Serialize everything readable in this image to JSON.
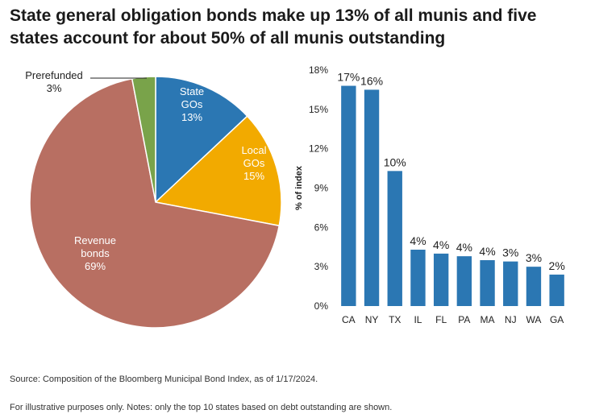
{
  "title": {
    "line1": "State general obligation bonds make up 13% of all munis and five",
    "line2": "states account for about 50% of all munis outstanding"
  },
  "chart_data": [
    {
      "type": "pie",
      "slices": [
        {
          "label_lines": [
            "State",
            "GOs",
            "13%"
          ],
          "value": 13,
          "color": "#2b77b3"
        },
        {
          "label_lines": [
            "Local",
            "GOs",
            "15%"
          ],
          "value": 15,
          "color": "#f2aa00"
        },
        {
          "label_lines": [
            "Revenue",
            "bonds",
            "69%"
          ],
          "value": 69,
          "color": "#b86f62"
        },
        {
          "label_lines": [
            "Prerefunded",
            "3%"
          ],
          "value": 3,
          "color": "#79a34a"
        }
      ]
    },
    {
      "type": "bar",
      "categories": [
        "CA",
        "NY",
        "TX",
        "IL",
        "FL",
        "PA",
        "MA",
        "NJ",
        "WA",
        "GA"
      ],
      "values": [
        16.8,
        16.5,
        10.3,
        4.3,
        4.0,
        3.8,
        3.5,
        3.4,
        3.0,
        2.4
      ],
      "data_labels": [
        "17%",
        "16%",
        "10%",
        "4%",
        "4%",
        "4%",
        "4%",
        "3%",
        "3%",
        "2%"
      ],
      "ylabel": "% of index",
      "ylim": [
        0,
        18
      ],
      "yticks": [
        0,
        3,
        6,
        9,
        12,
        15,
        18
      ],
      "ytick_labels": [
        "0%",
        "3%",
        "6%",
        "9%",
        "12%",
        "15%",
        "18%"
      ],
      "color": "#2b77b3",
      "grid": false
    }
  ],
  "footer": {
    "source": "Source: Composition of the Bloomberg Municipal Bond Index, as of 1/17/2024.",
    "notes": "For illustrative purposes only. Notes: only the top 10 states based on debt outstanding are shown."
  }
}
